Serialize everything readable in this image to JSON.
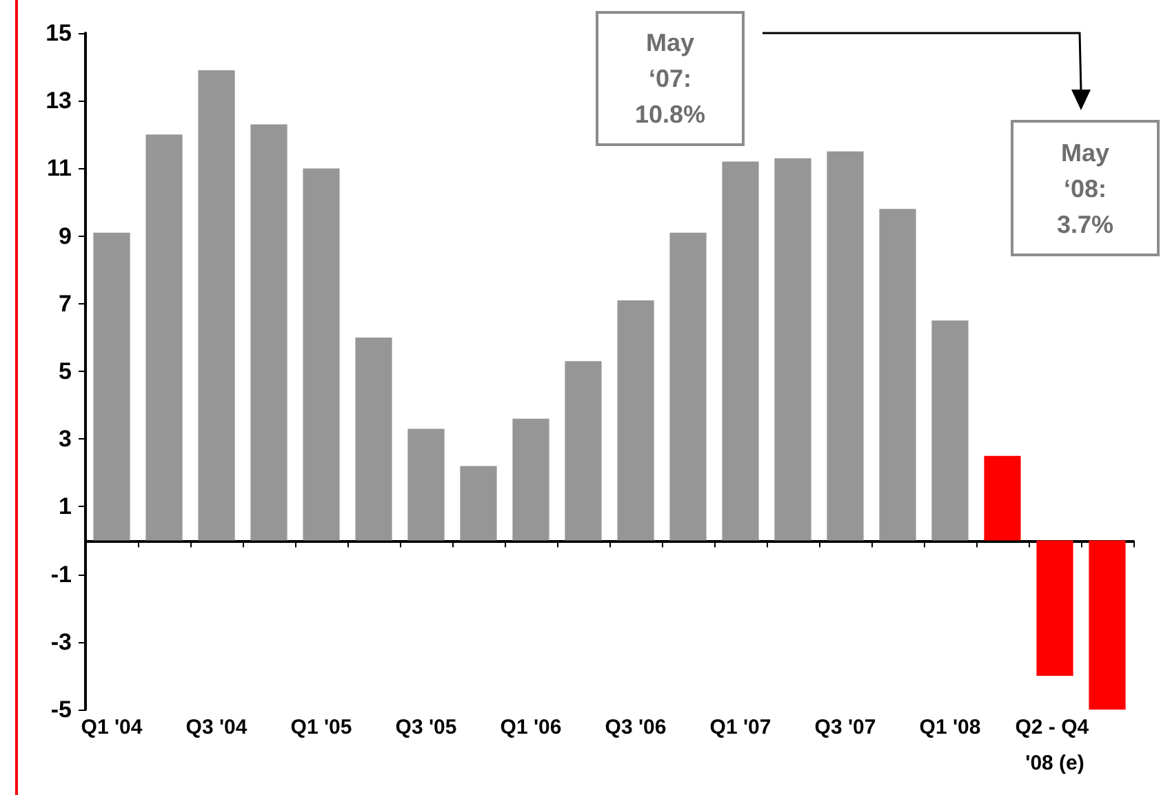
{
  "chart_data": {
    "type": "bar",
    "categories": [
      "Q1 '04",
      null,
      "Q3 '04",
      null,
      "Q1 '05",
      null,
      "Q3 '05",
      null,
      "Q1 '06",
      null,
      "Q3 '06",
      null,
      "Q1 '07",
      null,
      "Q3 '07",
      null,
      "Q1 '08",
      null,
      "Q2 - Q4 '08 (e)",
      null
    ],
    "values": [
      9.1,
      12.0,
      13.9,
      12.3,
      11.0,
      6.0,
      3.3,
      2.2,
      3.6,
      5.3,
      7.1,
      9.1,
      11.2,
      11.3,
      11.5,
      9.8,
      6.5,
      2.5,
      -4.0,
      -5.0
    ],
    "colors": [
      "#969696",
      "#969696",
      "#969696",
      "#969696",
      "#969696",
      "#969696",
      "#969696",
      "#969696",
      "#969696",
      "#969696",
      "#969696",
      "#969696",
      "#969696",
      "#969696",
      "#969696",
      "#969696",
      "#969696",
      "#ff0000",
      "#ff0000",
      "#ff0000"
    ],
    "ylim": [
      -5,
      15
    ],
    "yticks": [
      -5,
      -3,
      -1,
      1,
      3,
      5,
      7,
      9,
      11,
      13,
      15
    ],
    "annotations": [
      "May ‘07: 10.8%",
      "May ‘08: 3.7%"
    ],
    "grid": false
  }
}
